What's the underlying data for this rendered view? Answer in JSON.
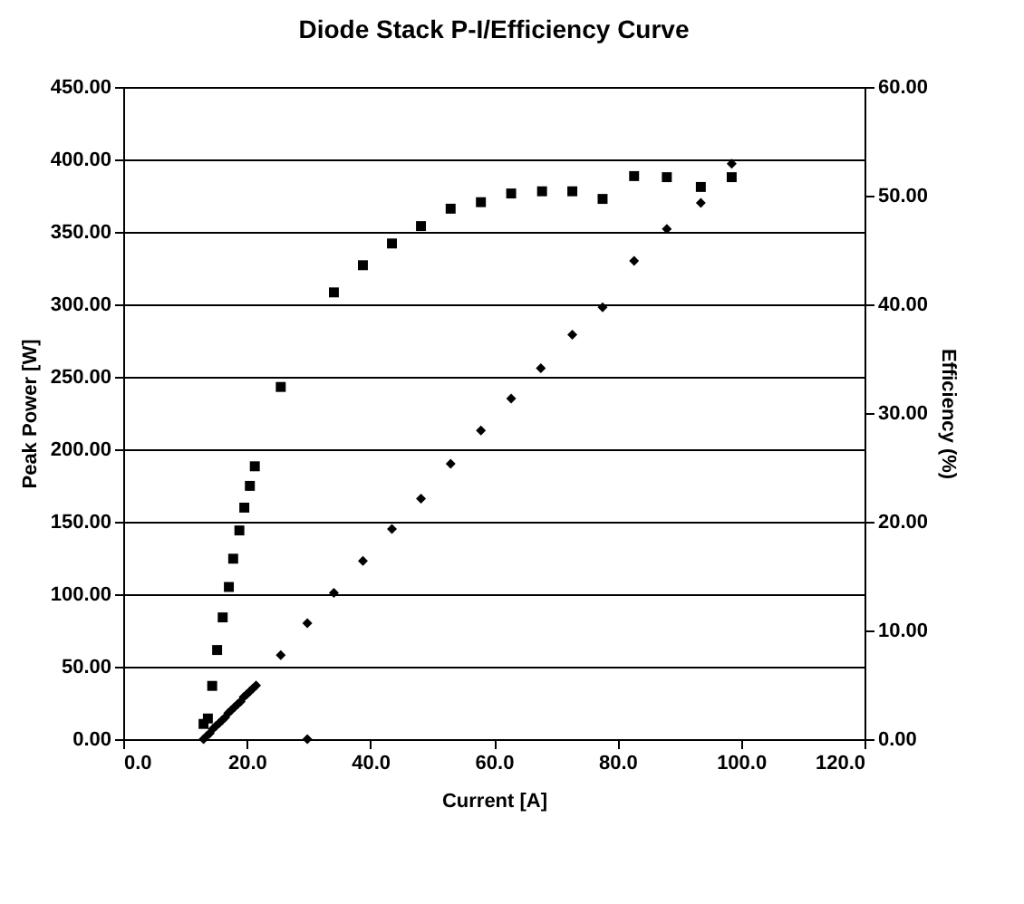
{
  "chart_data": {
    "type": "scatter",
    "title": "Diode Stack P-I/Efficiency Curve",
    "xlabel": "Current [A]",
    "ylabel": "Peak Power [W]",
    "y2label": "Efficiency (%)",
    "xlim": [
      0,
      120
    ],
    "xticks": [
      {
        "value": 0,
        "label": "0.0"
      },
      {
        "value": 20,
        "label": "20.0"
      },
      {
        "value": 40,
        "label": "40.0"
      },
      {
        "value": 60,
        "label": "60.0"
      },
      {
        "value": 80,
        "label": "80.0"
      },
      {
        "value": 100,
        "label": "100.0"
      },
      {
        "value": 120,
        "label": "120.0"
      }
    ],
    "ylim": [
      0,
      450
    ],
    "yticks": [
      {
        "value": 0,
        "label": "0.00"
      },
      {
        "value": 50,
        "label": "50.00"
      },
      {
        "value": 100,
        "label": "100.00"
      },
      {
        "value": 150,
        "label": "150.00"
      },
      {
        "value": 200,
        "label": "200.00"
      },
      {
        "value": 250,
        "label": "250.00"
      },
      {
        "value": 300,
        "label": "300.00"
      },
      {
        "value": 350,
        "label": "350.00"
      },
      {
        "value": 400,
        "label": "400.00"
      },
      {
        "value": 450,
        "label": "450.00"
      }
    ],
    "y2lim": [
      0,
      60
    ],
    "y2ticks": [
      {
        "value": 0,
        "label": "0.00"
      },
      {
        "value": 10,
        "label": "10.00"
      },
      {
        "value": 20,
        "label": "20.00"
      },
      {
        "value": 30,
        "label": "30.00"
      },
      {
        "value": 40,
        "label": "40.00"
      },
      {
        "value": 50,
        "label": "50.00"
      },
      {
        "value": 60,
        "label": "60.00"
      }
    ],
    "grid": "y",
    "series": [
      {
        "color": "#000000",
        "marker": "diamond",
        "x": [
          13.0,
          13.5,
          14.0,
          14.5,
          15.0,
          15.5,
          16.0,
          16.5,
          17.0,
          17.5,
          18.0,
          18.5,
          19.0,
          19.5,
          20.0,
          20.5,
          21.0,
          21.5,
          25.5,
          29.8,
          29.8,
          34.1,
          38.8,
          43.5,
          48.2,
          53.0,
          57.9,
          62.8,
          67.6,
          72.7,
          77.6,
          82.7,
          88.0,
          93.5,
          98.5
        ],
        "values": [
          0,
          2,
          4,
          7,
          9,
          11,
          13,
          15,
          18,
          20,
          22,
          24,
          26,
          29,
          31,
          33,
          35,
          37,
          58,
          80,
          0,
          101,
          123,
          145,
          166,
          190,
          213,
          235,
          256,
          279,
          298,
          330,
          352,
          370,
          397
        ]
      },
      {
        "color": "#000000",
        "marker": "square",
        "axis": "y2",
        "x": [
          13.0,
          13.7,
          14.4,
          15.2,
          16.1,
          17.1,
          17.8,
          18.8,
          19.6,
          20.5,
          21.3,
          25.5,
          34.1,
          38.8,
          43.5,
          48.2,
          53.0,
          57.9,
          62.8,
          67.8,
          72.7,
          77.6,
          82.7,
          88.0,
          93.5,
          98.5
        ],
        "values": [
          1.4,
          1.9,
          4.9,
          8.2,
          11.2,
          14.0,
          16.6,
          19.2,
          21.3,
          23.3,
          25.1,
          32.4,
          41.1,
          43.6,
          45.6,
          47.2,
          48.8,
          49.4,
          50.2,
          50.4,
          50.4,
          49.7,
          51.8,
          51.7,
          50.8,
          51.7
        ]
      }
    ]
  }
}
